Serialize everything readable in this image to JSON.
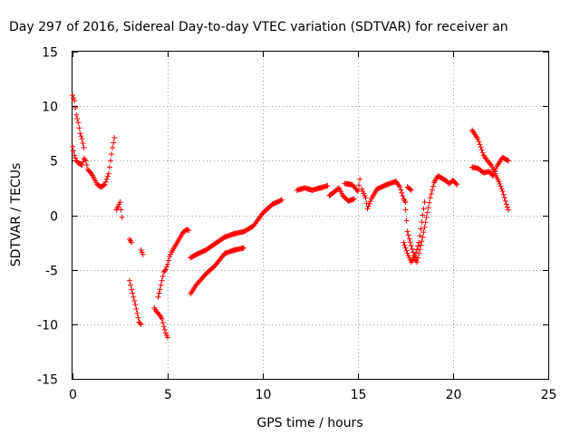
{
  "chart_data": {
    "type": "scatter",
    "title": "Day 297 of 2016, Sidereal Day-to-day VTEC variation (SDTVAR) for receiver an",
    "xlabel": "GPS time / hours",
    "ylabel": "SDTVAR / TECUs",
    "xlim": [
      0,
      25
    ],
    "ylim": [
      -15,
      15
    ],
    "xticks": [
      0,
      5,
      10,
      15,
      20,
      25
    ],
    "yticks": [
      -15,
      -10,
      -5,
      0,
      5,
      10,
      15
    ],
    "grid": true,
    "marker": "+",
    "color": "#ff0000",
    "segments": [
      [
        [
          0.0,
          11.0
        ],
        [
          0.1,
          10.5
        ],
        [
          0.2,
          9.2
        ],
        [
          0.3,
          8.5
        ],
        [
          0.4,
          7.5
        ],
        [
          0.5,
          7.0
        ],
        [
          0.6,
          6.2
        ]
      ],
      [
        [
          0.0,
          6.3
        ],
        [
          0.1,
          5.5
        ],
        [
          0.2,
          5.0
        ],
        [
          0.3,
          4.8
        ],
        [
          0.5,
          4.6
        ],
        [
          0.6,
          5.2
        ],
        [
          0.7,
          5.0
        ],
        [
          0.8,
          4.2
        ],
        [
          1.0,
          3.8
        ],
        [
          1.1,
          3.5
        ],
        [
          1.3,
          2.8
        ],
        [
          1.5,
          2.6
        ],
        [
          1.7,
          2.8
        ],
        [
          1.9,
          3.8
        ],
        [
          2.0,
          5.0
        ],
        [
          2.1,
          6.2
        ],
        [
          2.2,
          7.1
        ]
      ],
      [
        [
          2.3,
          0.5
        ],
        [
          2.4,
          0.8
        ],
        [
          2.5,
          1.2
        ],
        [
          2.6,
          -0.2
        ]
      ],
      [
        [
          3.0,
          -2.2
        ],
        [
          3.1,
          -2.5
        ]
      ],
      [
        [
          3.6,
          -3.2
        ],
        [
          3.7,
          -3.6
        ]
      ],
      [
        [
          3.0,
          -6.0
        ],
        [
          3.1,
          -6.8
        ],
        [
          3.2,
          -7.5
        ],
        [
          3.3,
          -8.2
        ],
        [
          3.4,
          -9.0
        ],
        [
          3.5,
          -9.8
        ],
        [
          3.6,
          -10.0
        ]
      ],
      [
        [
          4.3,
          -8.5
        ],
        [
          4.4,
          -8.8
        ],
        [
          4.5,
          -9.0
        ],
        [
          4.6,
          -9.2
        ],
        [
          4.7,
          -9.5
        ],
        [
          4.8,
          -10.2
        ],
        [
          4.9,
          -10.8
        ],
        [
          5.0,
          -11.2
        ]
      ],
      [
        [
          4.5,
          -7.5
        ],
        [
          4.6,
          -6.8
        ],
        [
          4.7,
          -6.0
        ],
        [
          4.8,
          -5.2
        ],
        [
          4.9,
          -5.0
        ],
        [
          5.0,
          -4.5
        ],
        [
          5.1,
          -3.8
        ],
        [
          5.2,
          -3.4
        ],
        [
          5.4,
          -2.8
        ],
        [
          5.6,
          -2.2
        ],
        [
          5.8,
          -1.6
        ],
        [
          6.0,
          -1.3
        ],
        [
          6.1,
          -1.4
        ]
      ],
      [
        [
          6.2,
          -3.9
        ],
        [
          6.5,
          -3.6
        ],
        [
          7.0,
          -3.2
        ],
        [
          7.5,
          -2.6
        ],
        [
          8.0,
          -2.0
        ],
        [
          8.5,
          -1.7
        ],
        [
          9.0,
          -1.5
        ],
        [
          9.5,
          -1.0
        ],
        [
          10.0,
          0.2
        ],
        [
          10.5,
          1.0
        ],
        [
          11.0,
          1.4
        ]
      ],
      [
        [
          6.2,
          -7.2
        ],
        [
          6.5,
          -6.4
        ],
        [
          7.0,
          -5.4
        ],
        [
          7.5,
          -4.6
        ],
        [
          8.0,
          -3.5
        ],
        [
          8.5,
          -3.2
        ],
        [
          9.0,
          -3.0
        ]
      ],
      [
        [
          11.8,
          2.3
        ],
        [
          12.2,
          2.5
        ],
        [
          12.6,
          2.3
        ],
        [
          13.0,
          2.5
        ],
        [
          13.4,
          2.7
        ]
      ],
      [
        [
          13.5,
          1.8
        ],
        [
          13.8,
          2.2
        ],
        [
          14.0,
          2.5
        ],
        [
          14.2,
          1.8
        ],
        [
          14.5,
          1.3
        ],
        [
          14.8,
          1.5
        ]
      ],
      [
        [
          14.3,
          2.9
        ],
        [
          14.7,
          2.8
        ],
        [
          15.0,
          2.2
        ],
        [
          15.1,
          3.3
        ]
      ],
      [
        [
          15.2,
          2.4
        ],
        [
          15.4,
          1.6
        ],
        [
          15.5,
          0.6
        ],
        [
          15.7,
          1.5
        ],
        [
          16.0,
          2.4
        ],
        [
          16.5,
          2.8
        ],
        [
          17.0,
          3.1
        ],
        [
          17.2,
          2.6
        ],
        [
          17.4,
          1.5
        ],
        [
          17.5,
          1.2
        ]
      ],
      [
        [
          17.5,
          0.5
        ],
        [
          17.6,
          -1.5
        ],
        [
          17.8,
          -2.8
        ],
        [
          18.0,
          -4.0
        ],
        [
          18.1,
          -4.3
        ],
        [
          18.2,
          -3.5
        ],
        [
          18.4,
          -2.0
        ],
        [
          18.6,
          -0.2
        ],
        [
          18.8,
          1.6
        ],
        [
          19.0,
          3.0
        ],
        [
          19.2,
          3.6
        ],
        [
          19.4,
          3.4
        ],
        [
          19.6,
          3.2
        ],
        [
          19.8,
          2.9
        ],
        [
          20.0,
          3.2
        ],
        [
          20.2,
          2.8
        ]
      ],
      [
        [
          17.4,
          -2.5
        ],
        [
          17.6,
          -3.5
        ],
        [
          17.8,
          -4.3
        ],
        [
          18.0,
          -3.8
        ],
        [
          18.2,
          -2.5
        ],
        [
          18.4,
          0.0
        ],
        [
          18.5,
          1.2
        ]
      ],
      [
        [
          17.6,
          2.6
        ],
        [
          17.8,
          2.3
        ]
      ],
      [
        [
          21.0,
          7.8
        ],
        [
          21.3,
          7.0
        ],
        [
          21.6,
          5.5
        ],
        [
          21.8,
          5.0
        ],
        [
          22.0,
          4.6
        ],
        [
          22.2,
          3.8
        ],
        [
          22.4,
          3.1
        ],
        [
          22.6,
          2.2
        ],
        [
          22.8,
          1.0
        ],
        [
          22.9,
          0.5
        ]
      ],
      [
        [
          21.0,
          4.4
        ],
        [
          21.3,
          4.3
        ],
        [
          21.6,
          3.9
        ],
        [
          21.9,
          4.0
        ],
        [
          22.1,
          3.6
        ],
        [
          22.3,
          4.5
        ],
        [
          22.6,
          5.3
        ],
        [
          22.9,
          5.0
        ]
      ]
    ]
  }
}
